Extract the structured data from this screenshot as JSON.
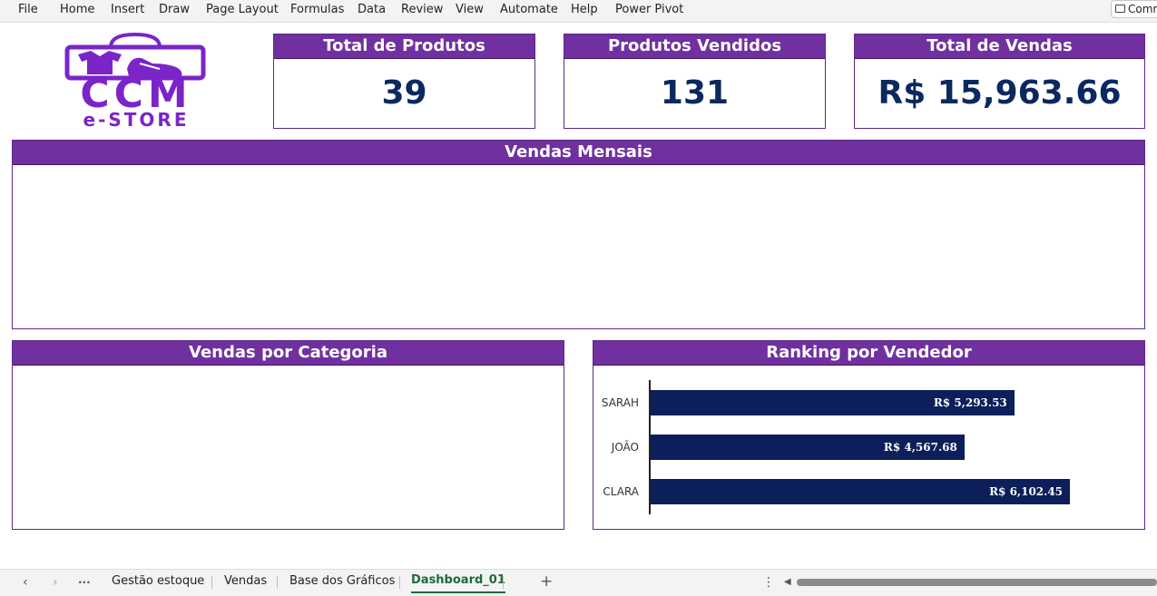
{
  "menu": {
    "items": [
      "File",
      "Home",
      "Insert",
      "Draw",
      "Page Layout",
      "Formulas",
      "Data",
      "Review",
      "View",
      "Automate",
      "Help",
      "Power Pivot"
    ],
    "comments_label": "Comm"
  },
  "logo": {
    "title": "CCM",
    "subtitle": "e-STORE"
  },
  "kpis": {
    "total_produtos": {
      "label": "Total de Produtos",
      "value": "39"
    },
    "produtos_vendidos": {
      "label": "Produtos Vendidos",
      "value": "131"
    },
    "total_vendas": {
      "label": "Total de Vendas",
      "value": "R$ 15,963.66"
    }
  },
  "panels": {
    "vendas_mensais": {
      "title": "Vendas Mensais"
    },
    "vendas_categoria": {
      "title": "Vendas por Categoria"
    },
    "ranking_vendedor": {
      "title": "Ranking por Vendedor"
    }
  },
  "chart_data": {
    "type": "bar",
    "orientation": "horizontal",
    "title": "Ranking por Vendedor",
    "categories": [
      "SARAH",
      "JOÃO",
      "CLARA"
    ],
    "values": [
      5293.53,
      4567.68,
      6102.45
    ],
    "value_labels": [
      "R$ 5,293.53",
      "R$ 4,567.68",
      "R$ 6,102.45"
    ],
    "xlim": [
      0,
      7000
    ],
    "grid": false,
    "legend": "none",
    "bar_color": "#0c1f5a"
  },
  "sheet_tabs": {
    "nav_prev": "‹",
    "nav_next": "›",
    "more": "···",
    "tabs": [
      "Gestão estoque",
      "Vendas",
      "Base dos Gráficos",
      "Dashboard_01"
    ],
    "active": "Dashboard_01",
    "add": "+",
    "options": "⋮"
  },
  "colors": {
    "header_purple": "#7030a0",
    "logo_purple": "#7b24c8",
    "kpi_navy": "#0c2860"
  }
}
